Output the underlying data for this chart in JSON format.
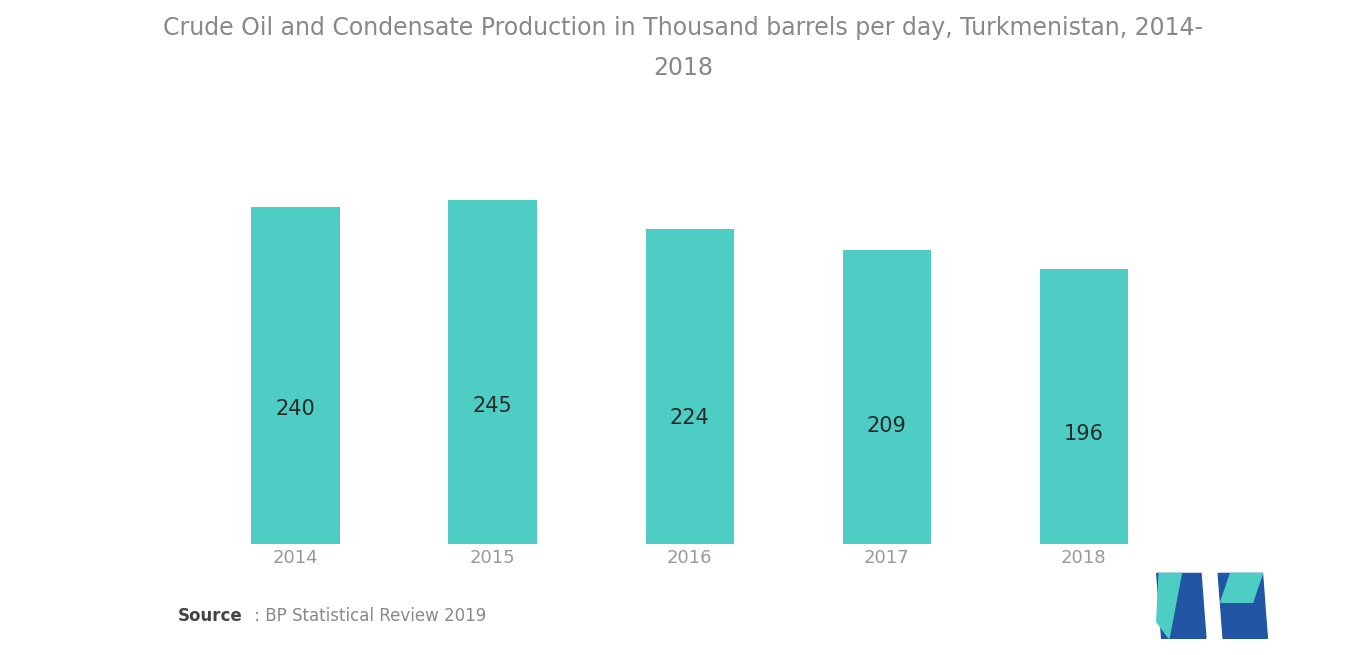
{
  "title_line1": "Crude Oil and Condensate Production in Thousand barrels per day, Turkmenistan, 2014-",
  "title_line2": "2018",
  "categories": [
    "2014",
    "2015",
    "2016",
    "2017",
    "2018"
  ],
  "values": [
    240,
    245,
    224,
    209,
    196
  ],
  "bar_color": "#4ECDC4",
  "label_color": "#2a2a2a",
  "label_fontsize": 15,
  "title_fontsize": 17,
  "title_color": "#888888",
  "tick_fontsize": 13,
  "tick_color": "#999999",
  "background_color": "#ffffff",
  "ylim": [
    0,
    280
  ],
  "source_bold": "Source",
  "source_normal": " : BP Statistical Review 2019",
  "bar_width": 0.45
}
